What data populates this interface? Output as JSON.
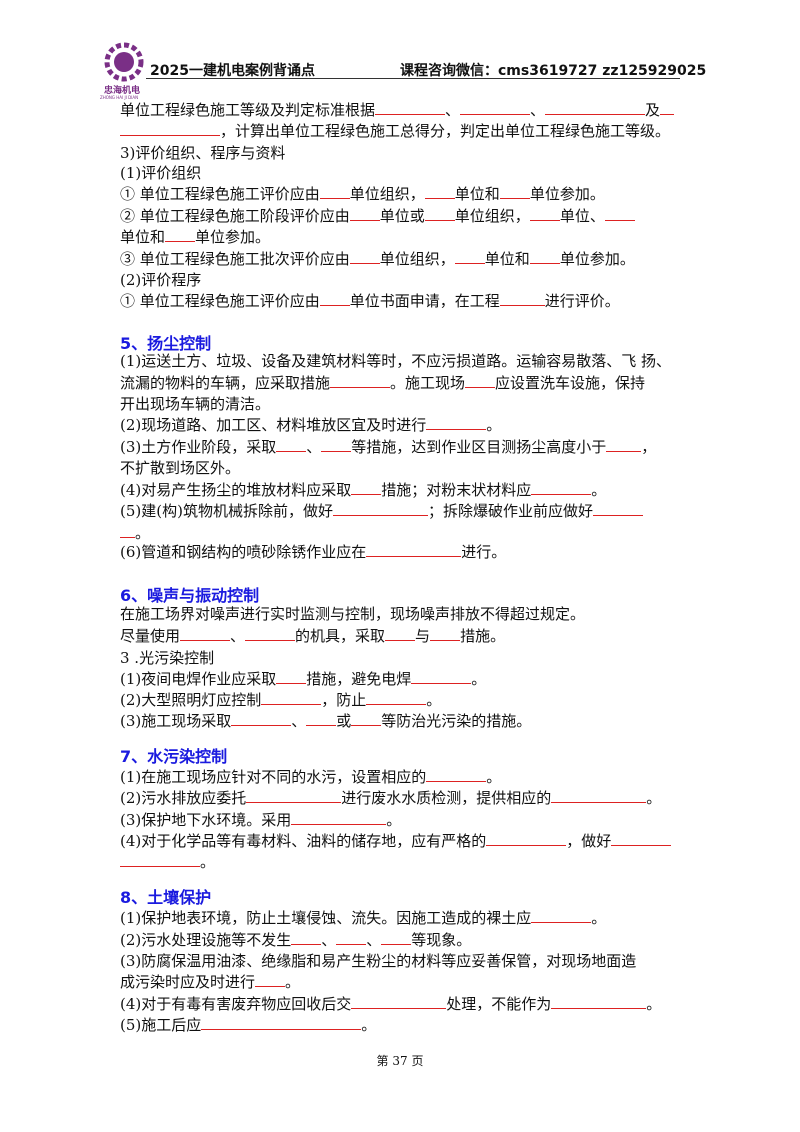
{
  "header": {
    "logo_text": "忠海机电",
    "logo_sub": "ZHONG HAI JI DIAN",
    "title": "2025一建机电案例背诵点",
    "contact": "课程咨询微信：cms3619727  zz125929025"
  },
  "body": [
    {
      "parts": [
        "单位工程绿色施工等级及判定标准根据",
        "、",
        "、",
        "及"
      ]
    },
    {
      "parts": [
        "，计算出单位工程绿色施工总得分，判定出单位工程绿色施工等级。"
      ]
    },
    {
      "parts": [
        "3)评价组织、程序与资料"
      ]
    },
    {
      "parts": [
        "(1)评价组织"
      ]
    },
    {
      "parts": [
        "① 单位工程绿色施工评价应由",
        "单位组织，",
        "单位和",
        "单位参加。"
      ]
    },
    {
      "parts": [
        "② 单位工程绿色施工阶段评价应由",
        "单位或",
        "单位组织，",
        "单位、"
      ]
    },
    {
      "parts": [
        "单位和",
        "单位参加。"
      ]
    },
    {
      "parts": [
        "③ 单位工程绿色施工批次评价应由",
        "单位组织，",
        "单位和",
        "单位参加。"
      ]
    },
    {
      "parts": [
        "(2)评价程序"
      ]
    },
    {
      "parts": [
        "① 单位工程绿色施工评价应由",
        "单位书面申请，在工程",
        "进行评价。"
      ]
    },
    {
      "heading": "5、扬尘控制"
    },
    {
      "parts": [
        "(1)运送土方、垃圾、设备及建筑材料等时，不应污损道路。运输容易散落、飞 扬、"
      ]
    },
    {
      "parts": [
        "流漏的物料的车辆，应采取措施",
        "。施工现场",
        "应设置洗车设施，保持"
      ]
    },
    {
      "parts": [
        "开出现场车辆的清洁。"
      ]
    },
    {
      "parts": [
        "(2)现场道路、加工区、材料堆放区宜及时进行",
        "。"
      ]
    },
    {
      "parts": [
        "(3)土方作业阶段，采取",
        "、",
        "等措施，达到作业区目测扬尘高度小于",
        "，"
      ]
    },
    {
      "parts": [
        "不扩散到场区外。"
      ]
    },
    {
      "parts": [
        "(4)对易产生扬尘的堆放材料应采取",
        "措施；对粉末状材料应",
        "。"
      ]
    },
    {
      "parts": [
        "(5)建(构)筑物机械拆除前，做好",
        "；拆除爆破作业前应做好"
      ]
    },
    {
      "parts": [
        "。"
      ]
    },
    {
      "parts": [
        "(6)管道和钢结构的喷砂除锈作业应在",
        "进行。"
      ]
    },
    {
      "heading": "6、噪声与振动控制"
    },
    {
      "parts": [
        "在施工场界对噪声进行实时监测与控制，现场噪声排放不得超过规定。"
      ]
    },
    {
      "parts": [
        "尽量使用",
        "、",
        "的机具，采取",
        "与",
        "措施。"
      ]
    },
    {
      "parts": [
        "3 .光污染控制"
      ]
    },
    {
      "parts": [
        "(1)夜间电焊作业应采取",
        "措施，避免电焊",
        "。"
      ]
    },
    {
      "parts": [
        "(2)大型照明灯应控制",
        "，防止",
        "。"
      ]
    },
    {
      "parts": [
        "(3)施工现场采取",
        "、",
        "或",
        "等防治光污染的措施。"
      ]
    },
    {
      "heading": "7、水污染控制"
    },
    {
      "parts": [
        "(1)在施工现场应针对不同的水污，设置相应的",
        "。"
      ]
    },
    {
      "parts": [
        "(2)污水排放应委托",
        "进行废水水质检测，提供相应的",
        "。"
      ]
    },
    {
      "parts": [
        "(3)保护地下水环境。采用",
        "。"
      ]
    },
    {
      "parts": [
        "(4)对于化学品等有毒材料、油料的储存地，应有严格的",
        "，做好"
      ]
    },
    {
      "parts": [
        "。"
      ]
    },
    {
      "heading": "8、土壤保护"
    },
    {
      "parts": [
        "(1)保护地表环境，防止土壤侵蚀、流失。因施工造成的裸土应",
        "。"
      ]
    },
    {
      "parts": [
        "(2)污水处理设施等不发生",
        "、",
        "、",
        "等现象。"
      ]
    },
    {
      "parts": [
        "(3)防腐保温用油漆、绝缘脂和易产生粉尘的材料等应妥善保管，对现场地面造"
      ]
    },
    {
      "parts": [
        "成污染时应及时进行",
        "。"
      ]
    },
    {
      "parts": [
        "(4)对于有毒有害废弃物应回收后交",
        "处理，不能作为",
        "。"
      ]
    },
    {
      "parts": [
        "(5)施工后应",
        "。"
      ]
    }
  ],
  "footer": {
    "page": "第 37 页"
  }
}
